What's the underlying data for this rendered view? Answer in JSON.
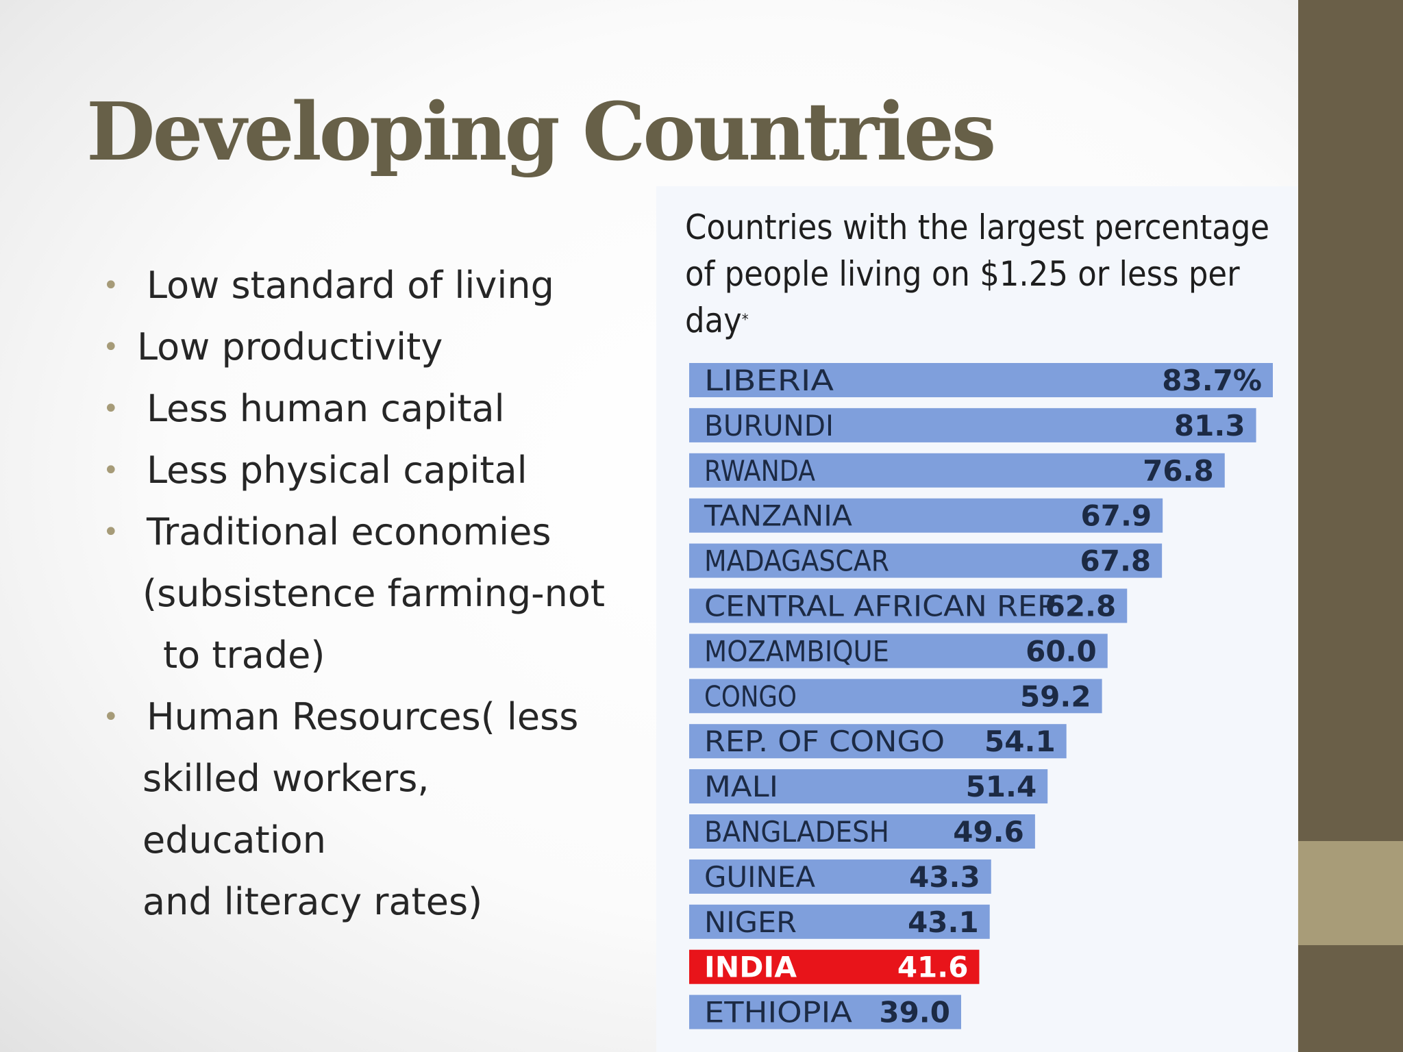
{
  "slide": {
    "title": "Developing Countries",
    "bullets": [
      {
        "lines": [
          "Low standard of living"
        ]
      },
      {
        "lines": [
          "Low productivity"
        ]
      },
      {
        "lines": [
          "Less human capital"
        ]
      },
      {
        "lines": [
          "Less physical capital"
        ]
      },
      {
        "lines": [
          "Traditional economies",
          "(subsistence farming-not",
          "to trade)"
        ]
      },
      {
        "lines": [
          "Human Resources( less",
          "skilled workers, education",
          "and literacy rates)"
        ]
      }
    ]
  },
  "colors": {
    "title": "#676048",
    "bullet_marker": "#a69b78",
    "bar_default": "#7f9fdc",
    "bar_highlight": "#e8141a",
    "band_dark": "#6a5f48",
    "band_light": "#a89c78"
  },
  "chart_data": {
    "type": "bar",
    "orientation": "horizontal",
    "title": "Countries with the largest percentage of people living on $1.25 or less per day",
    "title_mark": "*",
    "value_suffix_first": "%",
    "categories": [
      "LIBERIA",
      "BURUNDI",
      "RWANDA",
      "TANZANIA",
      "MADAGASCAR",
      "CENTRAL AFRICAN REP.",
      "MOZAMBIQUE",
      "CONGO",
      "REP. OF CONGO",
      "MALI",
      "BANGLADESH",
      "GUINEA",
      "NIGER",
      "INDIA",
      "ETHIOPIA"
    ],
    "values": [
      83.7,
      81.3,
      76.8,
      67.9,
      67.8,
      62.8,
      60.0,
      59.2,
      54.1,
      51.4,
      49.6,
      43.3,
      43.1,
      41.6,
      39.0
    ],
    "value_labels": [
      "83.7%",
      "81.3",
      "76.8",
      "67.9",
      "67.8",
      "62.8",
      "60.0",
      "59.2",
      "54.1",
      "51.4",
      "49.6",
      "43.3",
      "43.1",
      "41.6",
      "39.0"
    ],
    "highlight": "INDIA",
    "xlim": [
      0,
      83.7
    ]
  }
}
